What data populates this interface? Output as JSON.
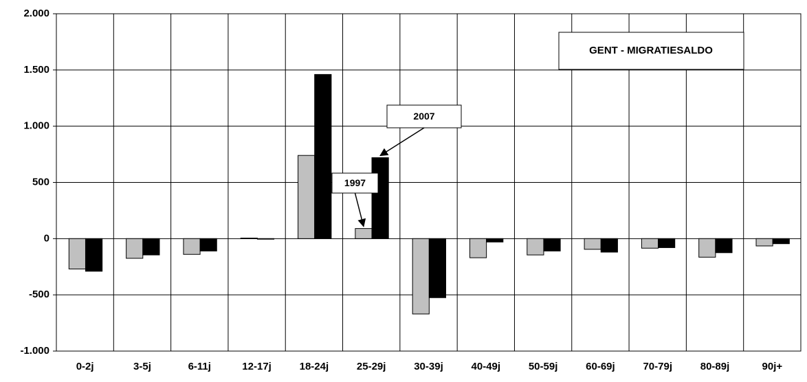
{
  "chart_data": {
    "type": "bar",
    "title": "GENT - MIGRATIESALDO",
    "categories": [
      "0-2j",
      "3-5j",
      "6-11j",
      "12-17j",
      "18-24j",
      "25-29j",
      "30-39j",
      "40-49j",
      "50-59j",
      "60-69j",
      "70-79j",
      "80-89j",
      "90j+"
    ],
    "series": [
      {
        "name": "1997",
        "color": "#c0c0c0",
        "values": [
          -270,
          -175,
          -140,
          5,
          740,
          90,
          -670,
          -170,
          -145,
          -95,
          -85,
          -165,
          -65
        ]
      },
      {
        "name": "2007",
        "color": "#000000",
        "values": [
          -290,
          -145,
          -110,
          -5,
          1460,
          720,
          -525,
          -30,
          -110,
          -120,
          -80,
          -125,
          -45
        ]
      }
    ],
    "ylim": [
      -1000,
      2000
    ],
    "yticks": [
      {
        "value": -1000,
        "label": "-1.000"
      },
      -500,
      0,
      500,
      {
        "value": 1000,
        "label": "1.000"
      },
      {
        "value": 1500,
        "label": "1.500"
      },
      {
        "value": 2000,
        "label": "2.000"
      }
    ],
    "grid": true
  }
}
